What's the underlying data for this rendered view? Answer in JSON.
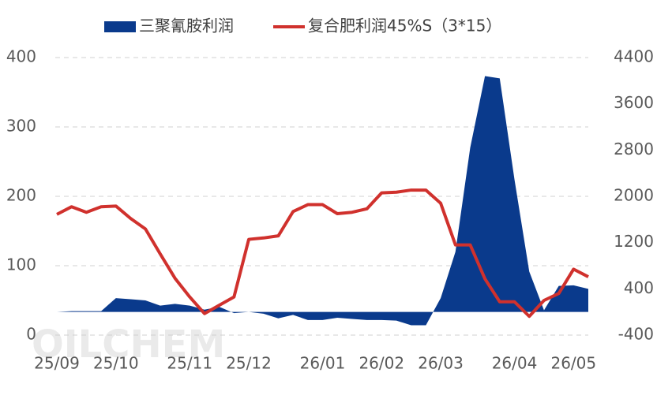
{
  "chart_data": {
    "type": "combo",
    "watermark": "OILCHEM",
    "categories": [
      "25/09",
      null,
      null,
      null,
      "25/10",
      null,
      null,
      null,
      null,
      "25/11",
      null,
      null,
      null,
      "25/12",
      null,
      null,
      null,
      null,
      "26/01",
      null,
      null,
      null,
      "26/02",
      null,
      null,
      null,
      "26/03",
      null,
      null,
      null,
      null,
      "26/04",
      null,
      null,
      null,
      "26/05",
      null
    ],
    "series": [
      {
        "name": "三聚氰胺利润",
        "type": "area",
        "axis": "y2",
        "color": "#0a3a8c",
        "values": [
          0,
          15,
          15,
          15,
          240,
          220,
          200,
          110,
          140,
          110,
          40,
          90,
          -20,
          0,
          -30,
          -110,
          -50,
          -140,
          -140,
          -100,
          -120,
          -140,
          -140,
          -150,
          -230,
          -230,
          240,
          1040,
          2840,
          4080,
          4040,
          2290,
          700,
          30,
          450,
          460,
          400
        ]
      },
      {
        "name": "复合肥利润45%S（3*15）",
        "type": "line",
        "axis": "y",
        "color": "#d0312d",
        "values": [
          174,
          185,
          177,
          185,
          186,
          168,
          153,
          117,
          82,
          55,
          31,
          43,
          55,
          138,
          140,
          143,
          178,
          188,
          188,
          175,
          177,
          182,
          205,
          206,
          209,
          209,
          190,
          130,
          130,
          81,
          48,
          48,
          27,
          50,
          60,
          95,
          84
        ]
      }
    ],
    "ylim": [
      0,
      400
    ],
    "yticks": [
      0,
      100,
      200,
      300,
      400
    ],
    "y2lim": [
      -400,
      4400
    ],
    "y2ticks": [
      -400,
      400,
      1200,
      2000,
      2800,
      3600,
      4400
    ],
    "grid": true,
    "legend": "top"
  }
}
